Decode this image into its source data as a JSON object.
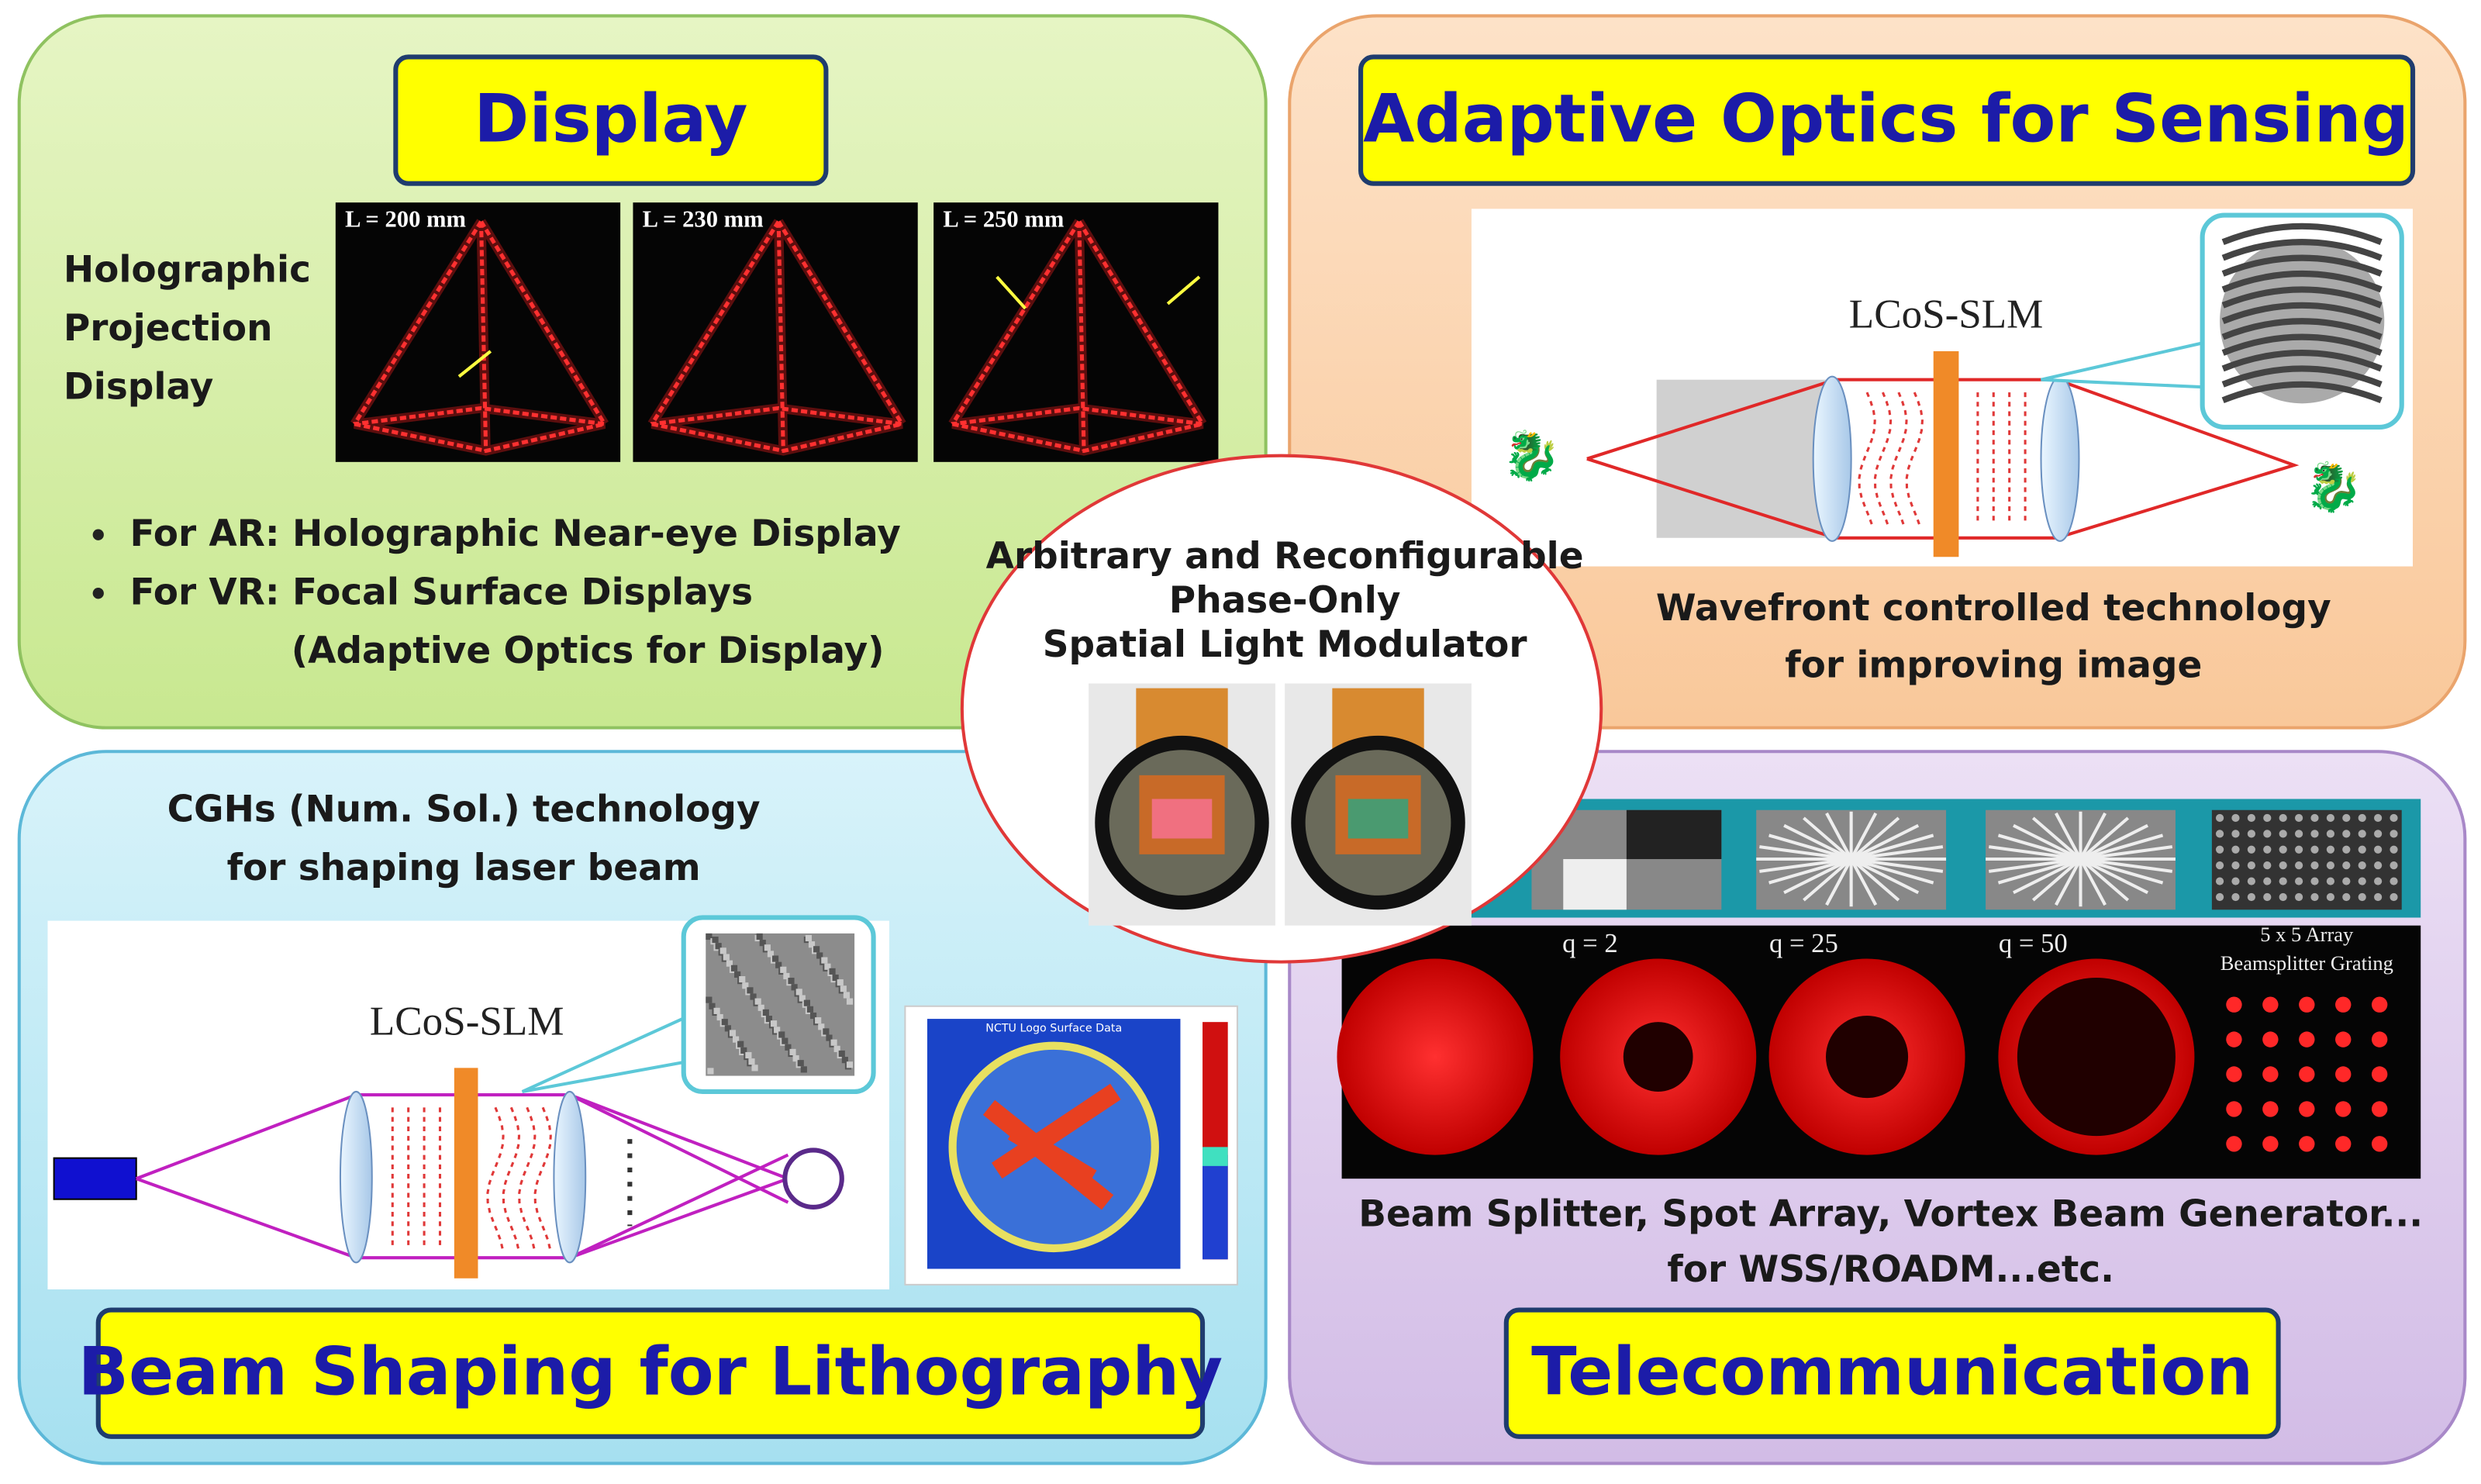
{
  "display": {
    "title": "Display",
    "caption": [
      "Holographic",
      "Projection",
      "Display"
    ],
    "images": [
      "L = 200 mm",
      "L = 230 mm",
      "L = 250 mm"
    ],
    "bullets": [
      "For AR: Holographic Near-eye Display",
      "For VR: Focal Surface Displays"
    ],
    "bullet_continuation": "(Adaptive Optics for Display)"
  },
  "sensing": {
    "title": "Adaptive Optics for Sensing",
    "device": "LCoS-SLM",
    "caption": [
      "Wavefront controlled technology",
      "for improving image"
    ]
  },
  "center": {
    "caption": [
      "Arbitrary and Reconfigurable",
      "Phase-Only",
      "Spatial Light Modulator"
    ]
  },
  "lithography": {
    "title": "Beam Shaping for Lithography",
    "caption": [
      "CGHs (Num. Sol.) technology",
      "for shaping laser beam"
    ],
    "device": "LCoS-SLM",
    "surface_title": "NCTU Logo Surface Data"
  },
  "telecom": {
    "title": "Telecommunication",
    "labels": [
      "q = 2",
      "q = 25",
      "q = 50"
    ],
    "array_label": [
      "5 x 5 Array",
      "Beamsplitter Grating"
    ],
    "caption": [
      "Beam Splitter, Spot Array, Vortex Beam Generator...",
      "for WSS/ROADM...etc."
    ]
  }
}
